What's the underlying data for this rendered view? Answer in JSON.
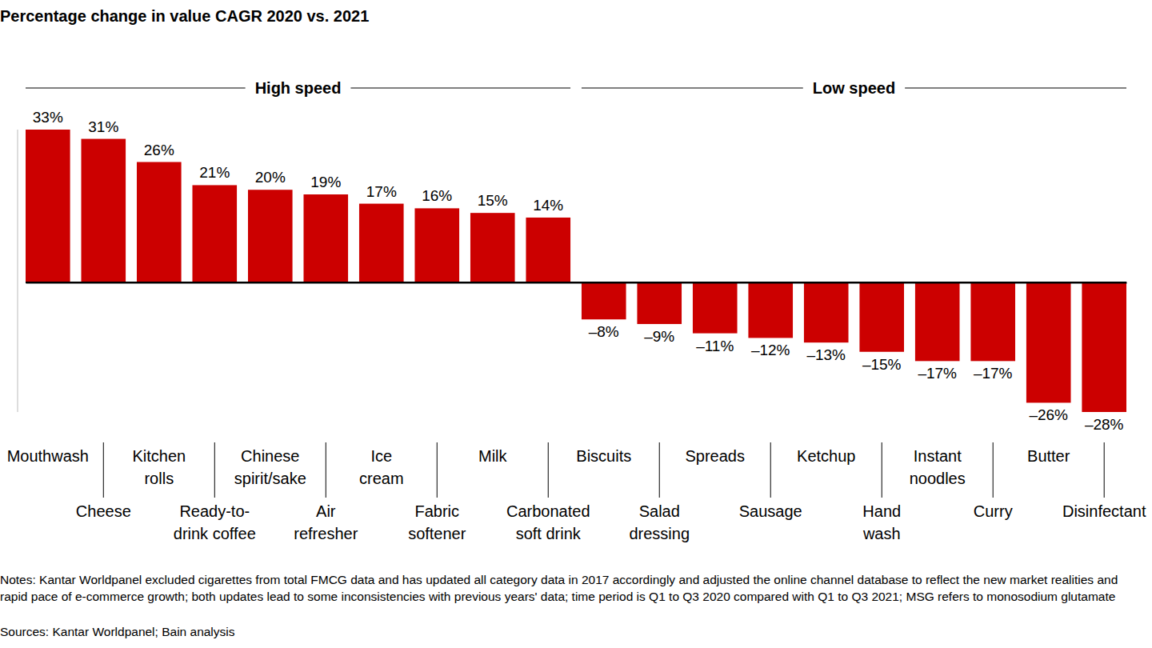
{
  "chart_data": {
    "type": "bar",
    "title": "Percentage change in value CAGR 2020 vs. 2021",
    "categories": [
      "Mouthwash",
      "Cheese",
      "Kitchen\nrolls",
      "Ready-to-\ndrink coffee",
      "Chinese\nspirit/sake",
      "Air\nrefresher",
      "Ice\ncream",
      "Fabric\nsoftener",
      "Milk",
      "Carbonated\nsoft drink",
      "Biscuits",
      "Salad\ndressing",
      "Spreads",
      "Sausage",
      "Ketchup",
      "Hand\nwash",
      "Instant\nnoodles",
      "Curry",
      "Butter",
      "Disinfectant"
    ],
    "values": [
      33,
      31,
      26,
      21,
      20,
      19,
      17,
      16,
      15,
      14,
      -8,
      -9,
      -11,
      -12,
      -13,
      -15,
      -17,
      -17,
      -26,
      -28
    ],
    "value_labels": [
      "33%",
      "31%",
      "26%",
      "21%",
      "20%",
      "19%",
      "17%",
      "16%",
      "15%",
      "14%",
      "–8%",
      "–9%",
      "–11%",
      "–12%",
      "–13%",
      "–15%",
      "–17%",
      "–17%",
      "–26%",
      "–28%"
    ],
    "color": "#cc0000",
    "ylim": [
      -28,
      33
    ],
    "yticks": [
      0
    ],
    "data_labels": true,
    "tick_labels": "x",
    "groups": [
      {
        "name": "High speed",
        "count": 10
      },
      {
        "name": "Low speed",
        "count": 10
      }
    ],
    "notes": "Notes: Kantar Worldpanel excluded cigarettes from total FMCG data and has updated all category data in 2017 accordingly and adjusted the online channel database to reflect the new market realities and rapid pace of e-commerce growth; both updates lead to some inconsistencies with previous years' data; time period is Q1 to Q3 2020 compared with Q1 to Q3 2021; MSG refers to monosodium glutamate",
    "source": "Sources: Kantar Worldpanel; Bain analysis"
  }
}
